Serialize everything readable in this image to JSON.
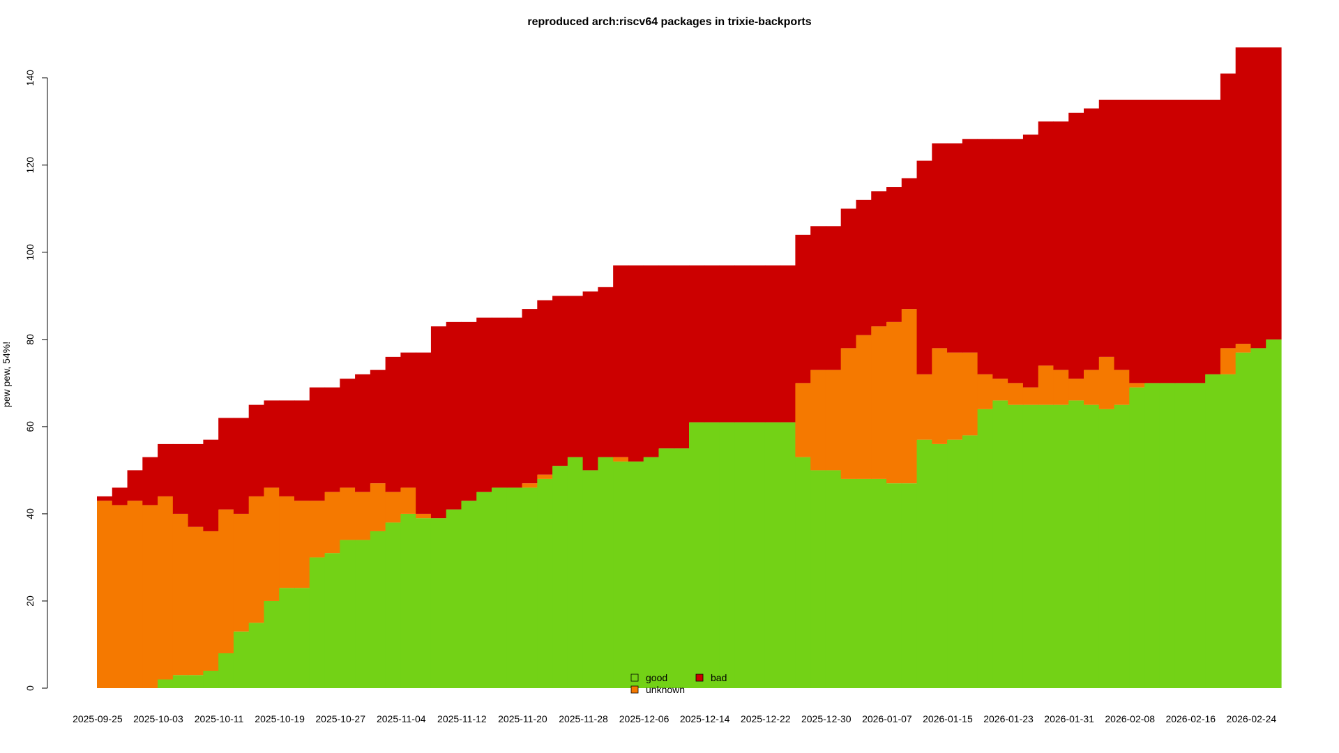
{
  "chart_data": {
    "type": "stacked_bar_step",
    "title": "reproduced arch:riscv64 packages in trixie-backports",
    "y_label": "pew pew, 54%!",
    "categories": [
      "2025-09-25",
      "2025-09-27",
      "2025-09-29",
      "2025-10-01",
      "2025-10-03",
      "2025-10-05",
      "2025-10-07",
      "2025-10-09",
      "2025-10-11",
      "2025-10-13",
      "2025-10-15",
      "2025-10-17",
      "2025-10-19",
      "2025-10-21",
      "2025-10-23",
      "2025-10-25",
      "2025-10-27",
      "2025-10-29",
      "2025-10-31",
      "2025-11-02",
      "2025-11-04",
      "2025-11-06",
      "2025-11-08",
      "2025-11-10",
      "2025-11-12",
      "2025-11-14",
      "2025-11-16",
      "2025-11-18",
      "2025-11-20",
      "2025-11-22",
      "2025-11-24",
      "2025-11-26",
      "2025-11-28",
      "2025-11-30",
      "2025-12-02",
      "2025-12-04",
      "2025-12-06",
      "2025-12-08",
      "2025-12-10",
      "2025-12-12",
      "2025-12-14",
      "2025-12-16",
      "2025-12-18",
      "2025-12-20",
      "2025-12-22",
      "2025-12-24",
      "2025-12-26",
      "2025-12-28",
      "2025-12-30",
      "2026-01-01",
      "2026-01-03",
      "2026-01-05",
      "2026-01-07",
      "2026-01-09",
      "2026-01-11",
      "2026-01-13",
      "2026-01-15",
      "2026-01-17",
      "2026-01-19",
      "2026-01-21",
      "2026-01-23",
      "2026-01-25",
      "2026-01-27",
      "2026-01-29",
      "2026-01-31",
      "2026-02-02",
      "2026-02-04",
      "2026-02-06",
      "2026-02-08",
      "2026-02-10",
      "2026-02-12",
      "2026-02-14",
      "2026-02-16",
      "2026-02-18",
      "2026-02-20",
      "2026-02-22",
      "2026-02-24",
      "2026-02-26"
    ],
    "series": [
      {
        "name": "good",
        "color": "#73d216",
        "values": [
          0,
          0,
          0,
          0,
          2,
          3,
          3,
          4,
          8,
          13,
          15,
          20,
          23,
          23,
          30,
          31,
          34,
          34,
          36,
          38,
          40,
          39,
          39,
          41,
          43,
          45,
          46,
          46,
          46,
          48,
          51,
          53,
          50,
          53,
          52,
          52,
          53,
          55,
          55,
          61,
          61,
          61,
          61,
          61,
          61,
          61,
          53,
          50,
          50,
          48,
          48,
          48,
          47,
          47,
          57,
          56,
          57,
          58,
          64,
          66,
          65,
          65,
          65,
          65,
          66,
          65,
          64,
          65,
          69,
          70,
          70,
          70,
          70,
          72,
          72,
          77,
          78,
          80
        ]
      },
      {
        "name": "unknown",
        "color": "#f57900",
        "values": [
          43,
          42,
          43,
          42,
          42,
          37,
          34,
          32,
          33,
          27,
          29,
          26,
          21,
          20,
          13,
          14,
          12,
          11,
          11,
          7,
          6,
          1,
          0,
          0,
          0,
          0,
          0,
          0,
          1,
          1,
          0,
          0,
          0,
          0,
          1,
          0,
          0,
          0,
          0,
          0,
          0,
          0,
          0,
          0,
          0,
          0,
          17,
          23,
          23,
          30,
          33,
          35,
          37,
          40,
          15,
          22,
          20,
          19,
          8,
          5,
          5,
          4,
          9,
          8,
          5,
          8,
          12,
          8,
          1,
          0,
          0,
          0,
          0,
          0,
          6,
          2,
          0,
          0
        ]
      },
      {
        "name": "bad",
        "color": "#cc0000",
        "values": [
          1,
          4,
          7,
          11,
          12,
          16,
          19,
          21,
          21,
          22,
          21,
          20,
          22,
          23,
          26,
          24,
          25,
          27,
          26,
          31,
          31,
          37,
          44,
          43,
          41,
          40,
          39,
          39,
          40,
          40,
          39,
          37,
          41,
          39,
          44,
          45,
          44,
          42,
          42,
          36,
          36,
          36,
          36,
          36,
          36,
          36,
          34,
          33,
          33,
          32,
          31,
          31,
          31,
          30,
          49,
          47,
          48,
          49,
          54,
          55,
          56,
          58,
          56,
          57,
          61,
          60,
          59,
          62,
          65,
          65,
          65,
          65,
          65,
          63,
          63,
          68,
          69,
          67
        ]
      }
    ],
    "ylim": [
      0,
      147
    ],
    "yticks": [
      0,
      20,
      40,
      60,
      80,
      100,
      120,
      140
    ]
  }
}
